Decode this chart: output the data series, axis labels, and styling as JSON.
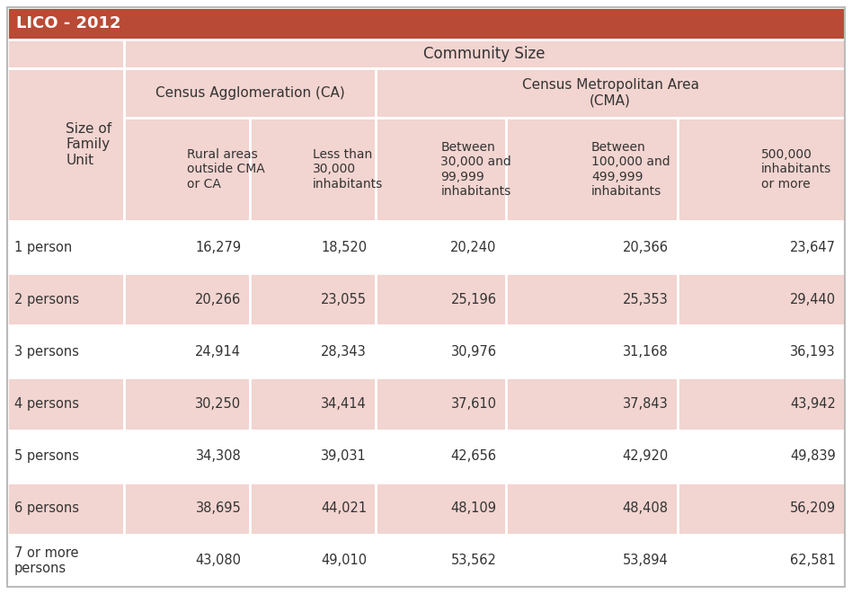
{
  "title": "LICO - 2012",
  "title_bg": "#b94a36",
  "title_fg": "#ffffff",
  "header_bg": "#f2d4d0",
  "header_bg2": "#e8c4bf",
  "row_bg_odd": "#ffffff",
  "row_bg_even": "#f2d4d0",
  "border_color": "#ffffff",
  "text_color": "#333333",
  "community_size_label": "Community Size",
  "ca_label": "Census Agglomeration (CA)",
  "cma_label": "Census Metropolitan Area\n(CMA)",
  "row_header_label": "Size of\nFamily\nUnit",
  "col_headers": [
    "Rural areas\noutside CMA\nor CA",
    "Less than\n30,000\ninhabitants",
    "Between\n30,000 and\n99,999\ninhabitants",
    "Between\n100,000 and\n499,999\ninhabitants",
    "500,000\ninhabitants\nor more"
  ],
  "row_labels": [
    "1 person",
    "2 persons",
    "3 persons",
    "4 persons",
    "5 persons",
    "6 persons",
    "7 or more\npersons"
  ],
  "data": [
    [
      "16,279",
      "18,520",
      "20,240",
      "20,366",
      "23,647"
    ],
    [
      "20,266",
      "23,055",
      "25,196",
      "25,353",
      "29,440"
    ],
    [
      "24,914",
      "28,343",
      "30,976",
      "31,168",
      "36,193"
    ],
    [
      "30,250",
      "34,414",
      "37,610",
      "37,843",
      "43,942"
    ],
    [
      "34,308",
      "39,031",
      "42,656",
      "42,920",
      "49,839"
    ],
    [
      "38,695",
      "44,021",
      "48,109",
      "48,408",
      "56,209"
    ],
    [
      "43,080",
      "49,010",
      "53,562",
      "53,894",
      "62,581"
    ]
  ],
  "figsize": [
    9.48,
    6.61
  ],
  "dpi": 100
}
